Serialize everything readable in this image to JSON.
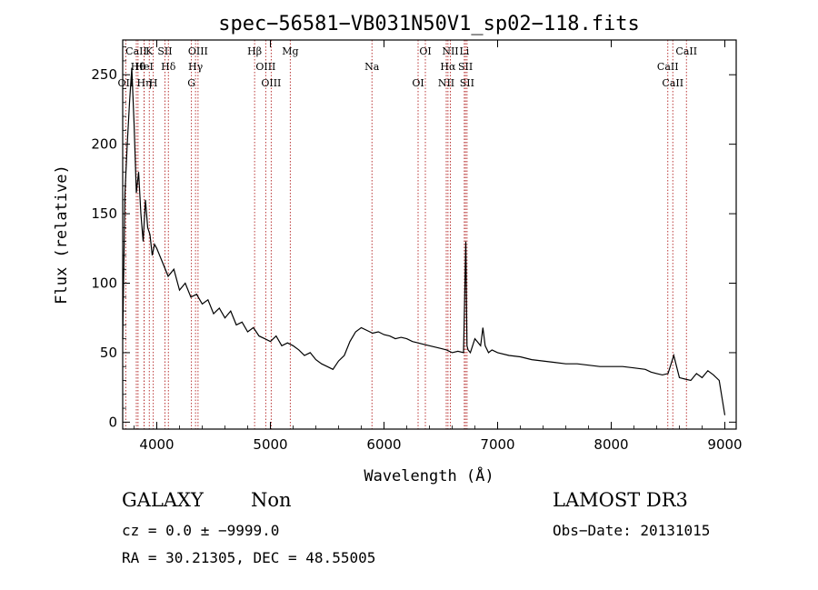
{
  "chart_data": {
    "type": "line",
    "title": "spec−56581−VB031N50V1_sp02−118.fits",
    "xlabel": "Wavelength (Å)",
    "ylabel": "Flux (relative)",
    "xlim": [
      3700,
      9100
    ],
    "ylim": [
      -5,
      275
    ],
    "xticks": [
      4000,
      5000,
      6000,
      7000,
      8000,
      9000
    ],
    "yticks": [
      0,
      50,
      100,
      150,
      200,
      250
    ],
    "series": [
      {
        "name": "flux",
        "x": [
          3700,
          3720,
          3740,
          3760,
          3780,
          3800,
          3820,
          3840,
          3860,
          3880,
          3900,
          3920,
          3940,
          3960,
          3980,
          4000,
          4050,
          4100,
          4150,
          4200,
          4250,
          4300,
          4350,
          4400,
          4450,
          4500,
          4550,
          4600,
          4650,
          4700,
          4750,
          4800,
          4850,
          4900,
          4950,
          5000,
          5050,
          5100,
          5150,
          5200,
          5250,
          5300,
          5350,
          5400,
          5450,
          5500,
          5550,
          5600,
          5650,
          5700,
          5750,
          5800,
          5850,
          5900,
          5950,
          6000,
          6050,
          6100,
          6150,
          6200,
          6250,
          6300,
          6350,
          6400,
          6450,
          6500,
          6550,
          6600,
          6650,
          6700,
          6720,
          6730,
          6740,
          6760,
          6800,
          6850,
          6870,
          6890,
          6920,
          6950,
          7000,
          7100,
          7200,
          7300,
          7400,
          7500,
          7600,
          7700,
          7800,
          7900,
          8000,
          8100,
          8200,
          8300,
          8350,
          8400,
          8450,
          8500,
          8550,
          8600,
          8650,
          8700,
          8750,
          8800,
          8850,
          8900,
          8950,
          9000
        ],
        "y": [
          60,
          165,
          200,
          230,
          255,
          215,
          165,
          180,
          150,
          130,
          160,
          140,
          135,
          120,
          128,
          125,
          115,
          105,
          110,
          95,
          100,
          90,
          92,
          85,
          88,
          78,
          82,
          75,
          80,
          70,
          72,
          65,
          68,
          62,
          60,
          58,
          62,
          55,
          57,
          55,
          52,
          48,
          50,
          45,
          42,
          40,
          38,
          44,
          48,
          58,
          65,
          68,
          66,
          64,
          65,
          63,
          62,
          60,
          61,
          60,
          58,
          57,
          56,
          55,
          54,
          53,
          52,
          50,
          51,
          50,
          130,
          55,
          52,
          50,
          60,
          55,
          68,
          55,
          50,
          52,
          50,
          48,
          47,
          45,
          44,
          43,
          42,
          42,
          41,
          40,
          40,
          40,
          39,
          38,
          36,
          35,
          34,
          35,
          48,
          32,
          31,
          30,
          35,
          32,
          37,
          34,
          30,
          5
        ]
      }
    ],
    "lines": [
      {
        "name": "Ca II",
        "label": "CaII",
        "wavelength": 3820
      },
      {
        "name": "H theta",
        "label": "Hθ",
        "wavelength": 3835
      },
      {
        "name": "Ca II H",
        "label": "H",
        "wavelength": 3969
      },
      {
        "name": "Ca II K",
        "label": "K",
        "wavelength": 3934
      },
      {
        "name": "He I",
        "label": "HeI",
        "wavelength": 3889
      },
      {
        "name": "H eta",
        "label": "Hη",
        "wavelength": 3889
      },
      {
        "name": "S II",
        "label": "SII",
        "wavelength": 4072
      },
      {
        "name": "H delta",
        "label": "Hδ",
        "wavelength": 4102
      },
      {
        "name": "O II",
        "label": "OII",
        "wavelength": 3727
      },
      {
        "name": "O III 4363",
        "label": "OIII",
        "wavelength": 4363
      },
      {
        "name": "H gamma",
        "label": "Hγ",
        "wavelength": 4341
      },
      {
        "name": "G band",
        "label": "G",
        "wavelength": 4305
      },
      {
        "name": "H beta",
        "label": "Hβ",
        "wavelength": 4861
      },
      {
        "name": "O III 4959",
        "label": "OIII",
        "wavelength": 4959
      },
      {
        "name": "O III 5007",
        "label": "OIII",
        "wavelength": 5007
      },
      {
        "name": "Mg",
        "label": "Mg",
        "wavelength": 5175
      },
      {
        "name": "Na",
        "label": "Na",
        "wavelength": 5894
      },
      {
        "name": "O I 6300",
        "label": "OI",
        "wavelength": 6300
      },
      {
        "name": "O I 6364",
        "label": "OI",
        "wavelength": 6364
      },
      {
        "name": "H alpha",
        "label": "Hα",
        "wavelength": 6563
      },
      {
        "name": "N II 6548",
        "label": "NII",
        "wavelength": 6548
      },
      {
        "name": "N II 6584",
        "label": "NII",
        "wavelength": 6584
      },
      {
        "name": "S II 6717",
        "label": "SII",
        "wavelength": 6717
      },
      {
        "name": "S II 6731",
        "label": "SII",
        "wavelength": 6731
      },
      {
        "name": "Li",
        "label": "Li",
        "wavelength": 6707
      },
      {
        "name": "Ca II 8498",
        "label": "CaII",
        "wavelength": 8498
      },
      {
        "name": "Ca II 8542",
        "label": "CaII",
        "wavelength": 8542
      },
      {
        "name": "Ca II 8662",
        "label": "CaII",
        "wavelength": 8662
      }
    ]
  },
  "info": {
    "class": "GALAXY",
    "subclass": "Non",
    "cz": "cz = 0.0 ± −9999.0",
    "radec": "RA =  30.21305, DEC =  48.55005",
    "survey": "LAMOST DR3",
    "obsdate": "Obs−Date: 20131015"
  },
  "colors": {
    "line_marker": "#b22222",
    "spectrum": "#000000",
    "axis": "#000000"
  }
}
